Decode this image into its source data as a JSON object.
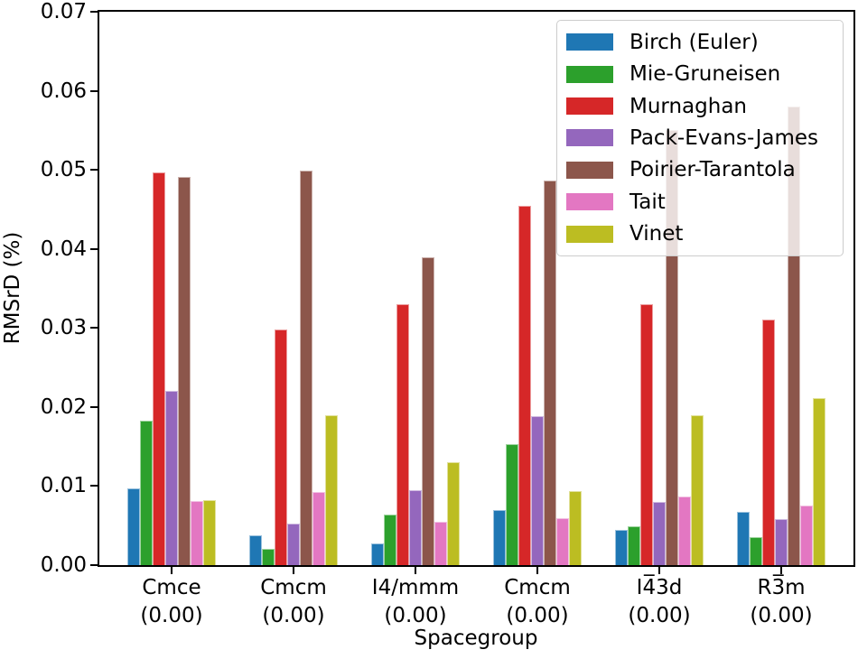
{
  "chart_data": {
    "type": "bar",
    "title": "",
    "xlabel": "Spacegroup",
    "ylabel": "RMSrD (%)",
    "ylim": [
      0,
      0.07
    ],
    "ytick_labels": [
      "0.00",
      "0.01",
      "0.02",
      "0.03",
      "0.04",
      "0.05",
      "0.06",
      "0.07"
    ],
    "grid": false,
    "legend_position": "upper right",
    "legend_border_color": "#cccccc",
    "axis_color": "#000000",
    "categories": [
      {
        "label": "Cmce",
        "sublabel": "(0.00)"
      },
      {
        "label": "Cmcm",
        "sublabel": "(0.00)"
      },
      {
        "label": "I4/mmm",
        "sublabel": "(0.00)"
      },
      {
        "label": "Cmcm",
        "sublabel": "(0.00)"
      },
      {
        "label": "I4̅3d",
        "sublabel": "(0.00)"
      },
      {
        "label": "R3̅m",
        "sublabel": "(0.00)"
      }
    ],
    "series": [
      {
        "name": "Birch (Euler)",
        "color": "#1f77b4",
        "values": [
          0.0097,
          0.0038,
          0.0028,
          0.007,
          0.0045,
          0.0067
        ]
      },
      {
        "name": "Mie-Gruneisen",
        "color": "#2ca02c",
        "values": [
          0.0183,
          0.0021,
          0.0064,
          0.0153,
          0.0049,
          0.0035
        ]
      },
      {
        "name": "Murnaghan",
        "color": "#d62728",
        "values": [
          0.0497,
          0.0298,
          0.033,
          0.0454,
          0.033,
          0.0311
        ]
      },
      {
        "name": "Pack-Evans-James",
        "color": "#9467bd",
        "values": [
          0.022,
          0.0053,
          0.0095,
          0.0188,
          0.008,
          0.0058
        ]
      },
      {
        "name": "Poirier-Tarantola",
        "color": "#8c564b",
        "values": [
          0.0491,
          0.0499,
          0.0389,
          0.0486,
          0.0551,
          0.058
        ]
      },
      {
        "name": "Tait",
        "color": "#e377c2",
        "values": [
          0.0081,
          0.0092,
          0.0055,
          0.0059,
          0.0087,
          0.0075
        ]
      },
      {
        "name": "Vinet",
        "color": "#bcbd22",
        "values": [
          0.0082,
          0.019,
          0.013,
          0.0094,
          0.019,
          0.0211
        ]
      }
    ]
  }
}
